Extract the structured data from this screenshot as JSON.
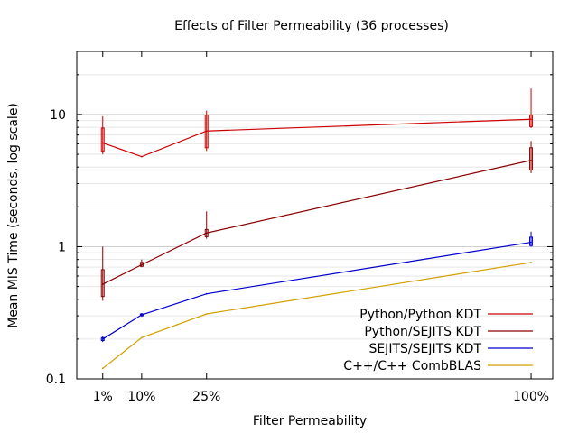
{
  "chart_data": {
    "type": "line",
    "title": "Effects of Filter Permeability (36 processes)",
    "xlabel": "Filter Permeability",
    "ylabel": "Mean MIS Time (seconds, log scale)",
    "y_scale": "log",
    "ylim": [
      0.1,
      30
    ],
    "xlim": [
      -5,
      105
    ],
    "x": [
      1,
      10,
      25,
      100
    ],
    "x_tick_labels": [
      "1%",
      "10%",
      "25%",
      "100%"
    ],
    "y_ticks": [
      0.1,
      1,
      10
    ],
    "y_tick_labels": [
      "0.1",
      "1",
      "10"
    ],
    "grid": true,
    "legend_position": "bottom-right",
    "series": [
      {
        "name": "Python/Python KDT",
        "color": "#cc0000",
        "values": [
          6.1,
          4.8,
          7.5,
          9.2
        ],
        "boxes": [
          {
            "x": 1,
            "low": 5.0,
            "q1": 5.3,
            "q3": 7.9,
            "high": 9.7
          },
          {
            "x": 25,
            "low": 5.3,
            "q1": 5.6,
            "q3": 9.9,
            "high": 10.7
          },
          {
            "x": 100,
            "low": 7.9,
            "q1": 8.1,
            "q3": 9.9,
            "high": 15.7
          }
        ]
      },
      {
        "name": "Python/SEJITS KDT",
        "color": "#8b0000",
        "values": [
          0.52,
          0.73,
          1.27,
          4.5
        ],
        "boxes": [
          {
            "x": 1,
            "low": 0.39,
            "q1": 0.42,
            "q3": 0.67,
            "high": 1.0
          },
          {
            "x": 10,
            "low": 0.7,
            "q1": 0.71,
            "q3": 0.76,
            "high": 0.8
          },
          {
            "x": 25,
            "low": 1.15,
            "q1": 1.19,
            "q3": 1.35,
            "high": 1.85
          },
          {
            "x": 100,
            "low": 3.6,
            "q1": 3.8,
            "q3": 5.6,
            "high": 6.3
          }
        ]
      },
      {
        "name": "SEJITS/SEJITS KDT",
        "color": "#0000cc",
        "values": [
          0.2,
          0.305,
          0.44,
          1.08
        ],
        "boxes": [
          {
            "x": 1,
            "low": 0.19,
            "q1": 0.195,
            "q3": 0.205,
            "high": 0.21
          },
          {
            "x": 10,
            "low": 0.295,
            "q1": 0.3,
            "q3": 0.31,
            "high": 0.315
          },
          {
            "x": 100,
            "low": 1.0,
            "q1": 1.02,
            "q3": 1.18,
            "high": 1.3
          }
        ]
      },
      {
        "name": "C++/C++ CombBLAS",
        "color": "#d4a000",
        "values": [
          0.12,
          0.205,
          0.31,
          0.76
        ],
        "boxes": []
      }
    ]
  }
}
